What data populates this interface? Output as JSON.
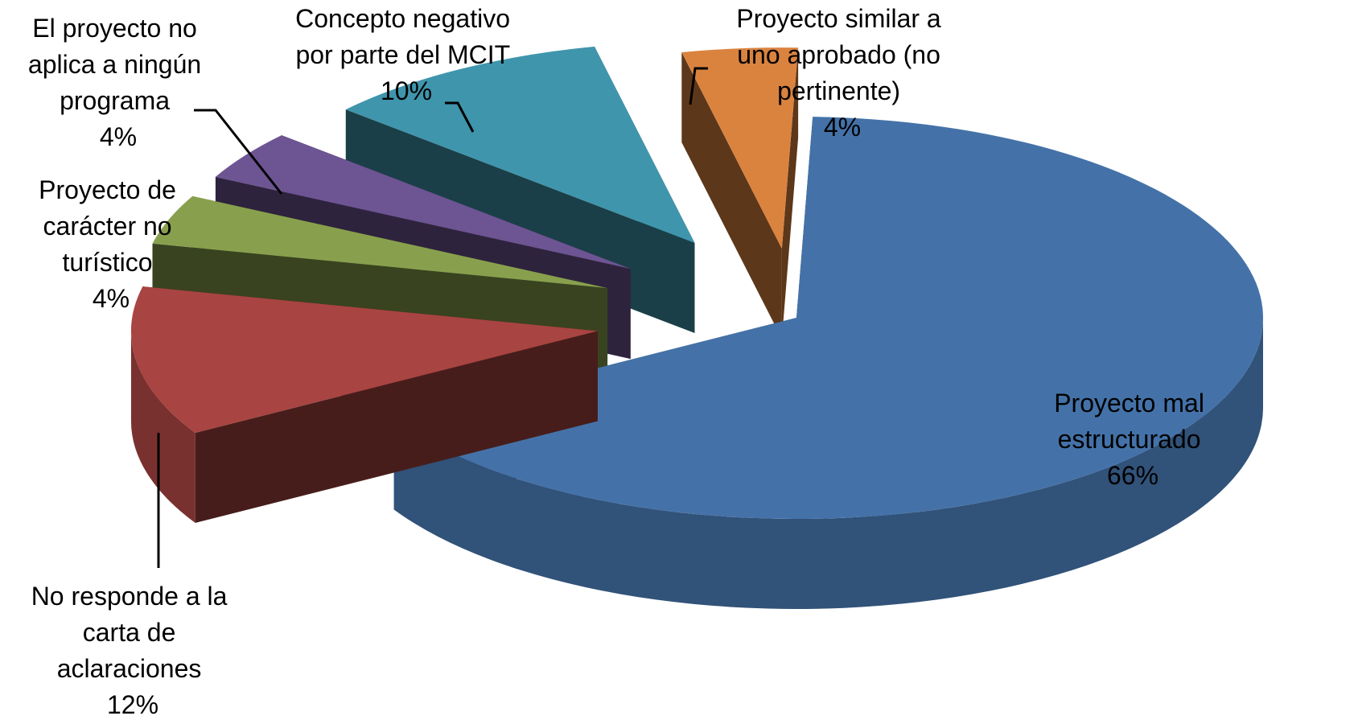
{
  "chart_data": {
    "type": "pie",
    "style": "3d-exploded",
    "title": "",
    "slices": [
      {
        "label": "Proyecto mal estructurado",
        "label_lines": [
          "Proyecto mal",
          "estructurado"
        ],
        "value": 66,
        "percent_text": "66%",
        "color": "#4472A8"
      },
      {
        "label": "No responde a la carta de aclaraciones",
        "label_lines": [
          "No responde a la",
          "carta de",
          "aclaraciones"
        ],
        "value": 12,
        "percent_text": "12%",
        "color": "#A84441"
      },
      {
        "label": "Proyecto de carácter no turístico",
        "label_lines": [
          "Proyecto de",
          "carácter no",
          "turístico"
        ],
        "value": 4,
        "percent_text": "4%",
        "color": "#88A04D"
      },
      {
        "label": "El proyecto no aplica a ningún programa",
        "label_lines": [
          "El proyecto no",
          "aplica a ningún",
          "programa"
        ],
        "value": 4,
        "percent_text": "4%",
        "color": "#6D5492"
      },
      {
        "label": "Concepto negativo por parte del MCIT",
        "label_lines": [
          "Concepto negativo",
          "por parte del MCIT"
        ],
        "value": 10,
        "percent_text": "10%",
        "color": "#3F95AC"
      },
      {
        "label": "Proyecto similar a uno aprobado (no pertinente)",
        "label_lines": [
          "Proyecto similar a",
          "uno aprobado (no",
          "pertinente)"
        ],
        "value": 4,
        "percent_text": "4%",
        "color": "#DA833F"
      }
    ],
    "legend": "none",
    "data_labels": "category-and-percent"
  }
}
